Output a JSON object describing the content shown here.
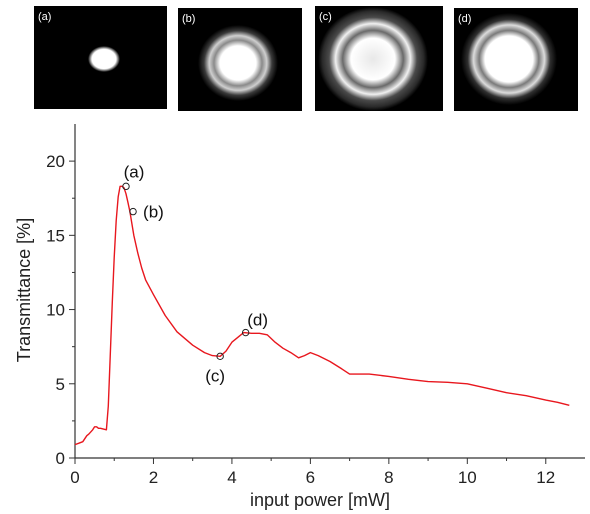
{
  "insets": [
    {
      "label": "(a)"
    },
    {
      "label": "(b)"
    },
    {
      "label": "(c)"
    },
    {
      "label": "(d)"
    }
  ],
  "chart_data": {
    "type": "line",
    "xlabel": "input power [mW]",
    "ylabel": "Transmittance [%]",
    "xlim": [
      0,
      13
    ],
    "ylim": [
      0,
      22.5
    ],
    "x_ticks": [
      "0",
      "2",
      "4",
      "6",
      "8",
      "10",
      "12"
    ],
    "x_tick_values": [
      0,
      2,
      4,
      6,
      8,
      10,
      12
    ],
    "y_ticks": [
      "0",
      "5",
      "10",
      "15",
      "20"
    ],
    "y_tick_values": [
      0,
      5,
      10,
      15,
      20
    ],
    "grid": false,
    "line_color": "#e8171e",
    "series": [
      {
        "x": [
          0.0,
          0.1,
          0.2,
          0.3,
          0.35,
          0.45,
          0.5,
          0.55,
          0.6,
          0.65,
          0.8,
          0.85,
          0.9,
          0.95,
          1.0,
          1.05,
          1.1,
          1.15,
          1.2,
          1.25,
          1.3,
          1.35,
          1.4,
          1.5,
          1.6,
          1.7,
          1.8,
          2.0,
          2.3,
          2.6,
          3.0,
          3.3,
          3.5,
          3.7,
          3.85,
          4.0,
          4.3,
          4.5,
          4.7,
          4.9,
          5.1,
          5.3,
          5.5,
          5.7,
          5.85,
          6.0,
          6.2,
          6.5,
          6.8,
          7.0,
          7.5,
          8.0,
          8.5,
          9.0,
          9.5,
          10.0,
          10.5,
          11.0,
          11.5,
          12.0,
          12.3,
          12.6
        ],
        "y": [
          0.9,
          1.0,
          1.1,
          1.5,
          1.6,
          1.9,
          2.1,
          2.1,
          2.0,
          2.0,
          1.9,
          3.5,
          7.0,
          10.5,
          13.5,
          16.0,
          17.6,
          18.3,
          18.3,
          18.2,
          17.8,
          17.2,
          16.6,
          15.0,
          13.8,
          12.8,
          12.0,
          11.0,
          9.6,
          8.5,
          7.6,
          7.1,
          6.9,
          6.85,
          7.2,
          7.8,
          8.45,
          8.4,
          8.4,
          8.3,
          7.8,
          7.4,
          7.1,
          6.75,
          6.9,
          7.1,
          6.9,
          6.5,
          6.0,
          5.65,
          5.65,
          5.5,
          5.3,
          5.15,
          5.1,
          5.0,
          4.7,
          4.4,
          4.2,
          3.9,
          3.75,
          3.55
        ]
      }
    ],
    "annotations": [
      {
        "label": "(a)",
        "x": 1.3,
        "y": 18.3
      },
      {
        "label": "(b)",
        "x": 1.48,
        "y": 16.6
      },
      {
        "label": "(c)",
        "x": 3.7,
        "y": 6.85
      },
      {
        "label": "(d)",
        "x": 4.35,
        "y": 8.45
      }
    ]
  }
}
